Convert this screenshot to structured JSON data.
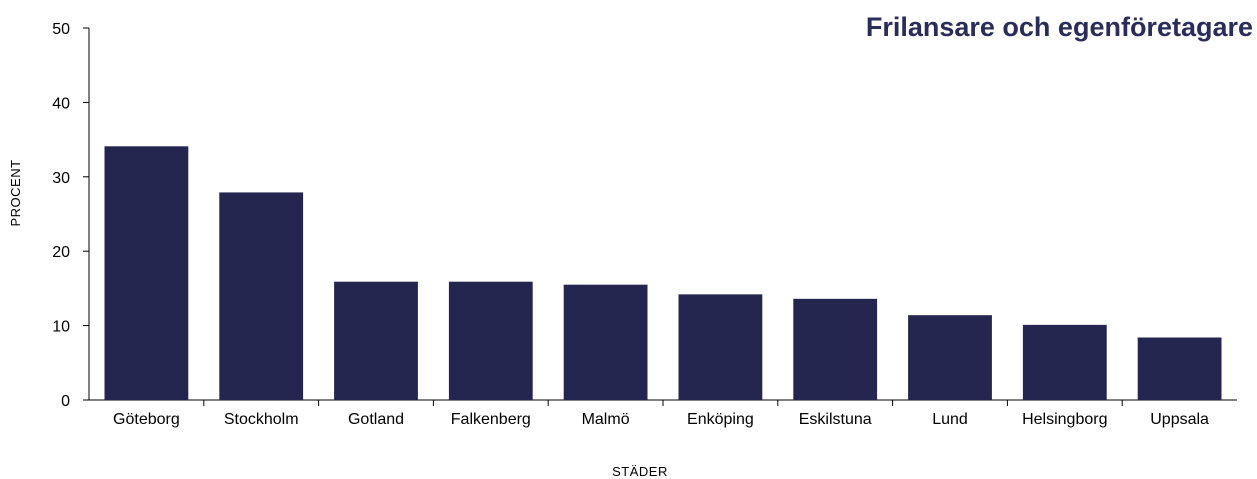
{
  "chart_data": {
    "type": "bar",
    "title": "Frilansare och egenföretagare",
    "xlabel": "STÄDER",
    "ylabel": "PROCENT",
    "categories": [
      "Göteborg",
      "Stockholm",
      "Gotland",
      "Falkenberg",
      "Malmö",
      "Enköping",
      "Eskilstuna",
      "Lund",
      "Helsingborg",
      "Uppsala"
    ],
    "values": [
      34.1,
      27.9,
      15.9,
      15.9,
      15.5,
      14.2,
      13.6,
      11.4,
      10.1,
      8.4
    ],
    "ylim": [
      0,
      50
    ],
    "yticks": [
      0,
      10,
      20,
      30,
      40,
      50
    ],
    "grid": false,
    "legend": "none",
    "bar_color": "#242650",
    "title_color": "#2a2c5a"
  }
}
